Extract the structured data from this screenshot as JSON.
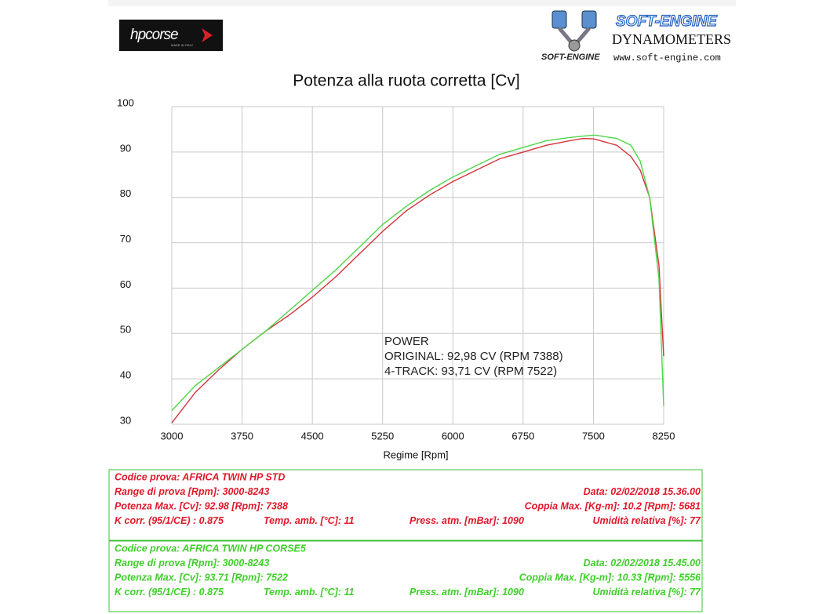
{
  "header": {
    "brand_logo": "hpcorse",
    "brand_tagline": "MADE IN ITALY",
    "dyno_logo": "SOFT-ENGINE",
    "dyno_logo_small": "SOFT-ENGINE",
    "dyno_subtitle": "DYNAMOMETERS",
    "dyno_url": "www.soft-engine.com"
  },
  "chart_data": {
    "type": "line",
    "title": "Potenza alla ruota corretta [Cv]",
    "x_label": "Regime [Rpm]",
    "x": [
      3000,
      3250,
      3500,
      3750,
      4000,
      4250,
      4500,
      4750,
      5000,
      5250,
      5500,
      5750,
      6000,
      6250,
      6500,
      6750,
      7000,
      7250,
      7388,
      7500,
      7522,
      7750,
      7900,
      8000,
      8100,
      8200,
      8250
    ],
    "series": [
      {
        "color": "#d0343a",
        "values": [
          30.3,
          37,
          42,
          46.5,
          50.5,
          54,
          58,
          62.5,
          67.5,
          72.5,
          77,
          80.5,
          83.5,
          86,
          88.5,
          90,
          91.5,
          92.5,
          92.98,
          92.9,
          92.8,
          91.5,
          89,
          86,
          80,
          65,
          45
        ]
      },
      {
        "color": "#4fd64a",
        "values": [
          33,
          38.5,
          42.5,
          46.5,
          50.5,
          55,
          59.5,
          64,
          69,
          74,
          78,
          81.5,
          84.5,
          87,
          89.5,
          91,
          92.5,
          93.2,
          93.5,
          93.7,
          93.71,
          93,
          91.5,
          88,
          80,
          62,
          34
        ]
      }
    ],
    "xlim": [
      3000,
      8250
    ],
    "xticks": [
      3000,
      3750,
      4500,
      5250,
      6000,
      6750,
      7500,
      8250
    ],
    "ylim": [
      30,
      100
    ],
    "yticks": [
      30,
      40,
      50,
      60,
      70,
      80,
      90,
      100
    ],
    "grid": true,
    "annotations": [
      "POWER",
      "ORIGINAL: 92,98 CV (RPM 7388)",
      "4-TRACK: 93,71 CV (RPM 7522)"
    ]
  },
  "test_blocks": [
    {
      "color": "#e0182a",
      "rows": [
        [
          "Codice prova: AFRICA TWIN HP STD"
        ],
        [
          "Range di prova [Rpm]: 3000-8243",
          "Data: 02/02/2018   15.36.00"
        ],
        [
          "Potenza Max. [Cv]: 92.98  [Rpm]: 7388",
          "Coppia Max. [Kg-m]: 10.2  [Rpm]: 5681"
        ],
        [
          "K corr. (95/1/CE) : 0.875",
          "Temp. amb. [°C]: 11",
          "Press. atm. [mBar]: 1090",
          "Umidità relativa [%]: 77"
        ]
      ]
    },
    {
      "color": "#3fcf2a",
      "rows": [
        [
          "Codice prova: AFRICA TWIN HP CORSE5"
        ],
        [
          "Range di prova [Rpm]: 3000-8243",
          "Data: 02/02/2018   15.45.00"
        ],
        [
          "Potenza Max. [Cv]: 93.71  [Rpm]: 7522",
          "Coppia Max. [Kg-m]: 10.33  [Rpm]: 5556"
        ],
        [
          "K corr. (95/1/CE) : 0.875",
          "Temp. amb. [°C]: 11",
          "Press. atm. [mBar]: 1090",
          "Umidità relativa [%]: 77"
        ]
      ]
    }
  ]
}
